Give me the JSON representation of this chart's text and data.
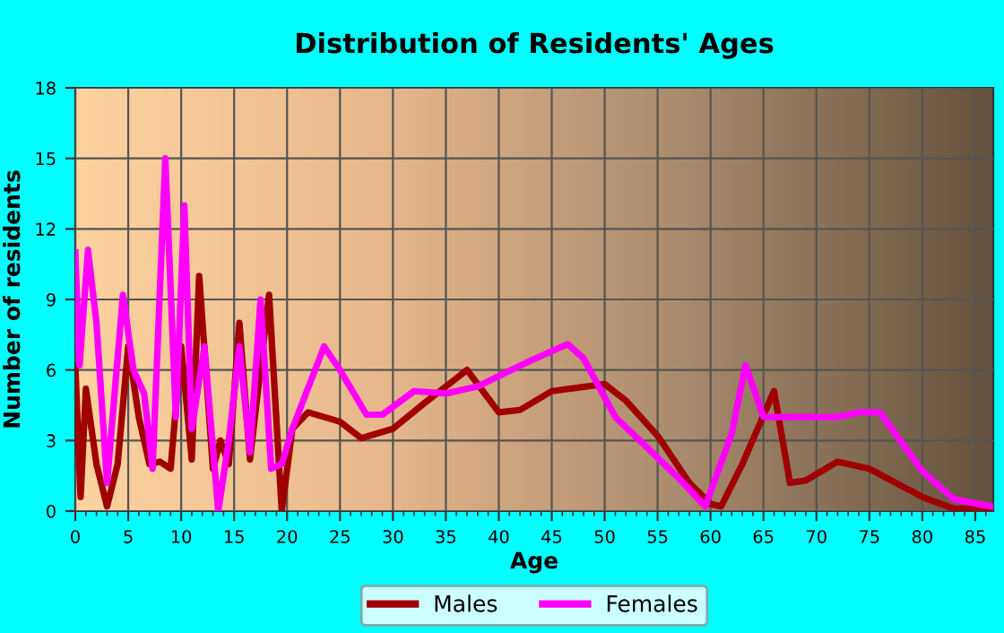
{
  "chart_data": {
    "type": "line",
    "title": "Distribution of Residents' Ages",
    "xlabel": "Age",
    "ylabel": "Number of residents",
    "xlim": [
      0,
      86.7
    ],
    "xticks": [
      0,
      5,
      10,
      15,
      20,
      25,
      30,
      35,
      40,
      45,
      50,
      55,
      60,
      65,
      70,
      75,
      80,
      85
    ],
    "ylim": [
      0,
      18
    ],
    "yticks": [
      0,
      3,
      6,
      9,
      12,
      15,
      18
    ],
    "grid": true,
    "legend": "bottom",
    "marker": "none",
    "line_style": "solid",
    "series": [
      {
        "name": "Males",
        "color": "#a00000",
        "x": [
          0,
          0.5,
          1,
          2,
          3,
          4,
          5,
          6,
          7,
          8,
          9,
          10,
          11,
          11.7,
          13,
          13.7,
          14.5,
          15.5,
          16.5,
          18.3,
          19.5,
          20.5,
          22,
          25,
          27,
          30,
          33,
          37,
          40,
          42,
          45,
          50,
          52,
          55,
          58,
          60,
          61,
          63,
          66,
          67.5,
          69,
          72,
          75,
          80,
          83,
          86.5
        ],
        "values": [
          6.2,
          0.6,
          5.2,
          2,
          0.2,
          2,
          7,
          4,
          2,
          2.1,
          1.8,
          7,
          2.2,
          10,
          1.8,
          3,
          2,
          8,
          2.2,
          9.2,
          0,
          3.5,
          4.2,
          3.8,
          3.1,
          3.5,
          4.6,
          6,
          4.2,
          4.3,
          5.1,
          5.4,
          4.7,
          3.2,
          1.2,
          0.3,
          0.2,
          2,
          5.1,
          1.2,
          1.3,
          2.1,
          1.8,
          0.6,
          0.1,
          0.1
        ]
      },
      {
        "name": "Females",
        "color": "#ff00ff",
        "x": [
          0,
          0.4,
          1.2,
          2,
          3,
          4.5,
          5.5,
          6.5,
          7.3,
          8.5,
          9.5,
          10.3,
          11,
          12.2,
          13.5,
          14.5,
          15.5,
          16.5,
          17.5,
          18.5,
          19.5,
          20.5,
          23.5,
          25,
          27.5,
          29,
          32,
          35,
          38,
          43,
          46.5,
          48,
          51,
          54,
          57,
          59.5,
          62,
          63.3,
          65,
          67,
          72,
          74,
          76,
          80,
          83,
          86.5
        ],
        "values": [
          11,
          6.2,
          11.1,
          8,
          1.2,
          9.2,
          6,
          5,
          1.8,
          15,
          4,
          13,
          3.5,
          7,
          0,
          3,
          7,
          2.5,
          9,
          1.8,
          2,
          3.5,
          7,
          6,
          4.1,
          4.1,
          5.1,
          5,
          5.3,
          6.4,
          7.1,
          6.5,
          4,
          2.7,
          1.4,
          0.2,
          3.3,
          6.2,
          4,
          4,
          4,
          4.2,
          4.2,
          1.7,
          0.5,
          0.2
        ]
      }
    ]
  }
}
